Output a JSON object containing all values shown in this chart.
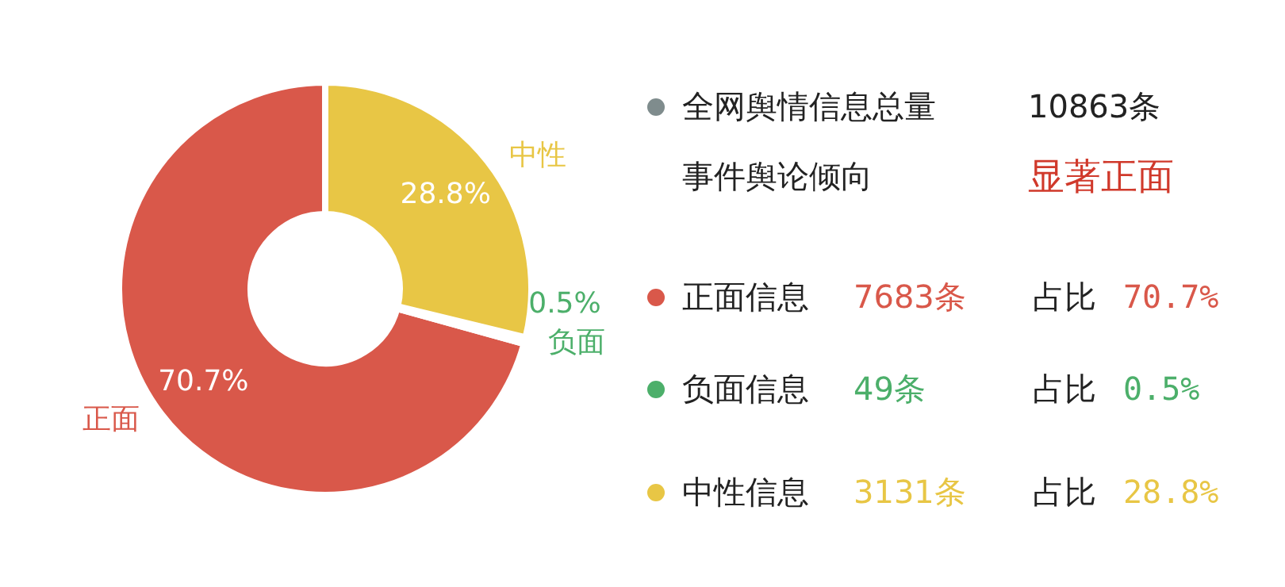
{
  "chart_data": {
    "type": "donut",
    "categories": [
      "正面",
      "负面",
      "中性"
    ],
    "values": [
      70.7,
      0.5,
      28.8
    ],
    "colors": [
      "#d9584a",
      "#4caf6a",
      "#e8c645"
    ],
    "value_labels": [
      "70.7%",
      "0.5%",
      "28.8%"
    ],
    "annotations": [
      "全网舆情信息总量",
      "10863条",
      "事件舆论倾向",
      "显著正面",
      "正面信息",
      "7683条",
      "占比",
      "70.7%",
      "负面信息",
      "49条",
      "占比",
      "0.5%",
      "中性信息",
      "3131条",
      "占比",
      "28.8%"
    ]
  }
}
